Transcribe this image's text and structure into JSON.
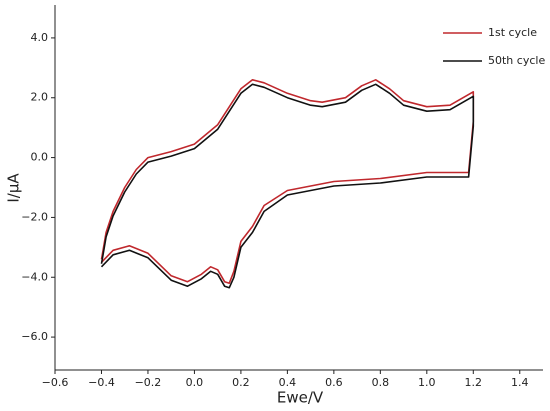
{
  "chart_data": {
    "type": "line",
    "x_label": "Ewe/V",
    "y_label": "I/μA",
    "xlim": [
      -0.6,
      1.5
    ],
    "ylim": [
      -7.1,
      5.1
    ],
    "xticks": [
      {
        "value": -0.6,
        "label": "−0.6"
      },
      {
        "value": -0.4,
        "label": "−0.4"
      },
      {
        "value": -0.2,
        "label": "−0.2"
      },
      {
        "value": 0,
        "label": "0.0"
      },
      0.2,
      0.4,
      0.6,
      0.8,
      {
        "value": 1,
        "label": "1.0"
      },
      1.2,
      1.4
    ],
    "yticks": [
      {
        "value": -6,
        "label": "−6.0"
      },
      {
        "value": -4,
        "label": "−4.0"
      },
      {
        "value": -2,
        "label": "−2.0"
      },
      {
        "value": 0,
        "label": "0.0"
      },
      {
        "value": 2,
        "label": "2.0"
      },
      {
        "value": 4,
        "label": "4.0"
      }
    ],
    "legend": "top-right",
    "series": [
      {
        "name": "1st cycle",
        "color": "#c0282d",
        "x": [
          -0.4,
          -0.38,
          -0.35,
          -0.3,
          -0.25,
          -0.2,
          -0.1,
          0,
          0.1,
          0.2,
          0.25,
          0.3,
          0.4,
          0.5,
          0.55,
          0.65,
          0.72,
          0.78,
          0.84,
          0.9,
          1.0,
          1.1,
          1.2,
          1.2,
          1.18,
          1.0,
          0.8,
          0.6,
          0.4,
          0.3,
          0.25,
          0.2,
          0.17,
          0.15,
          0.13,
          0.1,
          0.07,
          0.03,
          -0.03,
          -0.1,
          -0.2,
          -0.28,
          -0.35,
          -0.4
        ],
        "values": [
          -3.4,
          -2.5,
          -1.8,
          -1.0,
          -0.4,
          0.0,
          0.2,
          0.45,
          1.1,
          2.3,
          2.6,
          2.5,
          2.15,
          1.9,
          1.85,
          2.0,
          2.4,
          2.6,
          2.3,
          1.9,
          1.7,
          1.75,
          2.2,
          1.2,
          -0.5,
          -0.5,
          -0.7,
          -0.8,
          -1.1,
          -1.6,
          -2.3,
          -2.8,
          -3.8,
          -4.2,
          -4.15,
          -3.75,
          -3.65,
          -3.9,
          -4.15,
          -3.95,
          -3.2,
          -2.95,
          -3.1,
          -3.5
        ]
      },
      {
        "name": "50th cycle",
        "color": "#111111",
        "x": [
          -0.4,
          -0.38,
          -0.35,
          -0.3,
          -0.25,
          -0.2,
          -0.1,
          0,
          0.1,
          0.2,
          0.25,
          0.3,
          0.4,
          0.5,
          0.55,
          0.65,
          0.72,
          0.78,
          0.84,
          0.9,
          1.0,
          1.1,
          1.2,
          1.2,
          1.18,
          1.0,
          0.8,
          0.6,
          0.4,
          0.3,
          0.25,
          0.2,
          0.17,
          0.15,
          0.13,
          0.1,
          0.07,
          0.03,
          -0.03,
          -0.1,
          -0.2,
          -0.28,
          -0.35,
          -0.4
        ],
        "values": [
          -3.55,
          -2.65,
          -1.95,
          -1.15,
          -0.55,
          -0.15,
          0.05,
          0.3,
          0.95,
          2.15,
          2.45,
          2.35,
          2.0,
          1.75,
          1.7,
          1.85,
          2.25,
          2.45,
          2.15,
          1.75,
          1.55,
          1.6,
          2.05,
          1.05,
          -0.65,
          -0.65,
          -0.85,
          -0.95,
          -1.25,
          -1.8,
          -2.5,
          -3.0,
          -4.0,
          -4.35,
          -4.3,
          -3.9,
          -3.8,
          -4.05,
          -4.3,
          -4.1,
          -3.35,
          -3.1,
          -3.25,
          -3.65
        ]
      }
    ]
  }
}
